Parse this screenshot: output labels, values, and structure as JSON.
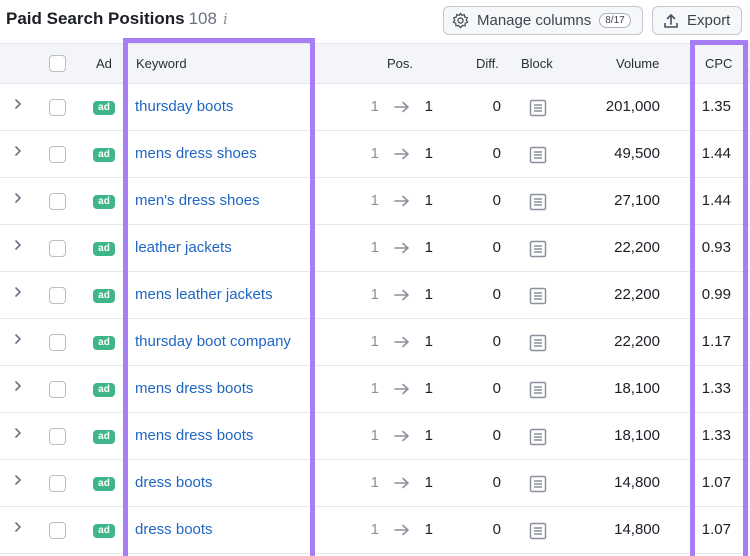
{
  "header": {
    "title": "Paid Search Positions",
    "count": "108",
    "info_glyph": "i",
    "manage_label": "Manage columns",
    "manage_badge": "8/17",
    "export_label": "Export"
  },
  "columns": {
    "ad": "Ad",
    "keyword": "Keyword",
    "pos": "Pos.",
    "diff": "Diff.",
    "block": "Block",
    "volume": "Volume",
    "cpc": "CPC"
  },
  "rows": [
    {
      "ad": "ad",
      "keyword": "thursday boots",
      "pos_from": "1",
      "pos_to": "1",
      "diff": "0",
      "volume": "201,000",
      "cpc": "1.35"
    },
    {
      "ad": "ad",
      "keyword": "mens dress shoes",
      "pos_from": "1",
      "pos_to": "1",
      "diff": "0",
      "volume": "49,500",
      "cpc": "1.44"
    },
    {
      "ad": "ad",
      "keyword": "men's dress shoes",
      "pos_from": "1",
      "pos_to": "1",
      "diff": "0",
      "volume": "27,100",
      "cpc": "1.44"
    },
    {
      "ad": "ad",
      "keyword": "leather jackets",
      "pos_from": "1",
      "pos_to": "1",
      "diff": "0",
      "volume": "22,200",
      "cpc": "0.93"
    },
    {
      "ad": "ad",
      "keyword": "mens leather jackets",
      "pos_from": "1",
      "pos_to": "1",
      "diff": "0",
      "volume": "22,200",
      "cpc": "0.99"
    },
    {
      "ad": "ad",
      "keyword": "thursday boot company",
      "pos_from": "1",
      "pos_to": "1",
      "diff": "0",
      "volume": "22,200",
      "cpc": "1.17"
    },
    {
      "ad": "ad",
      "keyword": "mens dress boots",
      "pos_from": "1",
      "pos_to": "1",
      "diff": "0",
      "volume": "18,100",
      "cpc": "1.33"
    },
    {
      "ad": "ad",
      "keyword": "mens dress boots",
      "pos_from": "1",
      "pos_to": "1",
      "diff": "0",
      "volume": "18,100",
      "cpc": "1.33"
    },
    {
      "ad": "ad",
      "keyword": "dress boots",
      "pos_from": "1",
      "pos_to": "1",
      "diff": "0",
      "volume": "14,800",
      "cpc": "1.07"
    },
    {
      "ad": "ad",
      "keyword": "dress boots",
      "pos_from": "1",
      "pos_to": "1",
      "diff": "0",
      "volume": "14,800",
      "cpc": "1.07"
    }
  ],
  "colors": {
    "highlight": "#a77ef4",
    "link": "#1f66c2",
    "ad_badge": "#3fb58a"
  },
  "icons": {
    "manage": "gear-icon",
    "export": "upload-icon",
    "expand": "chevron-right-icon",
    "arrow": "arrow-right-icon",
    "block": "serp-block-icon"
  }
}
